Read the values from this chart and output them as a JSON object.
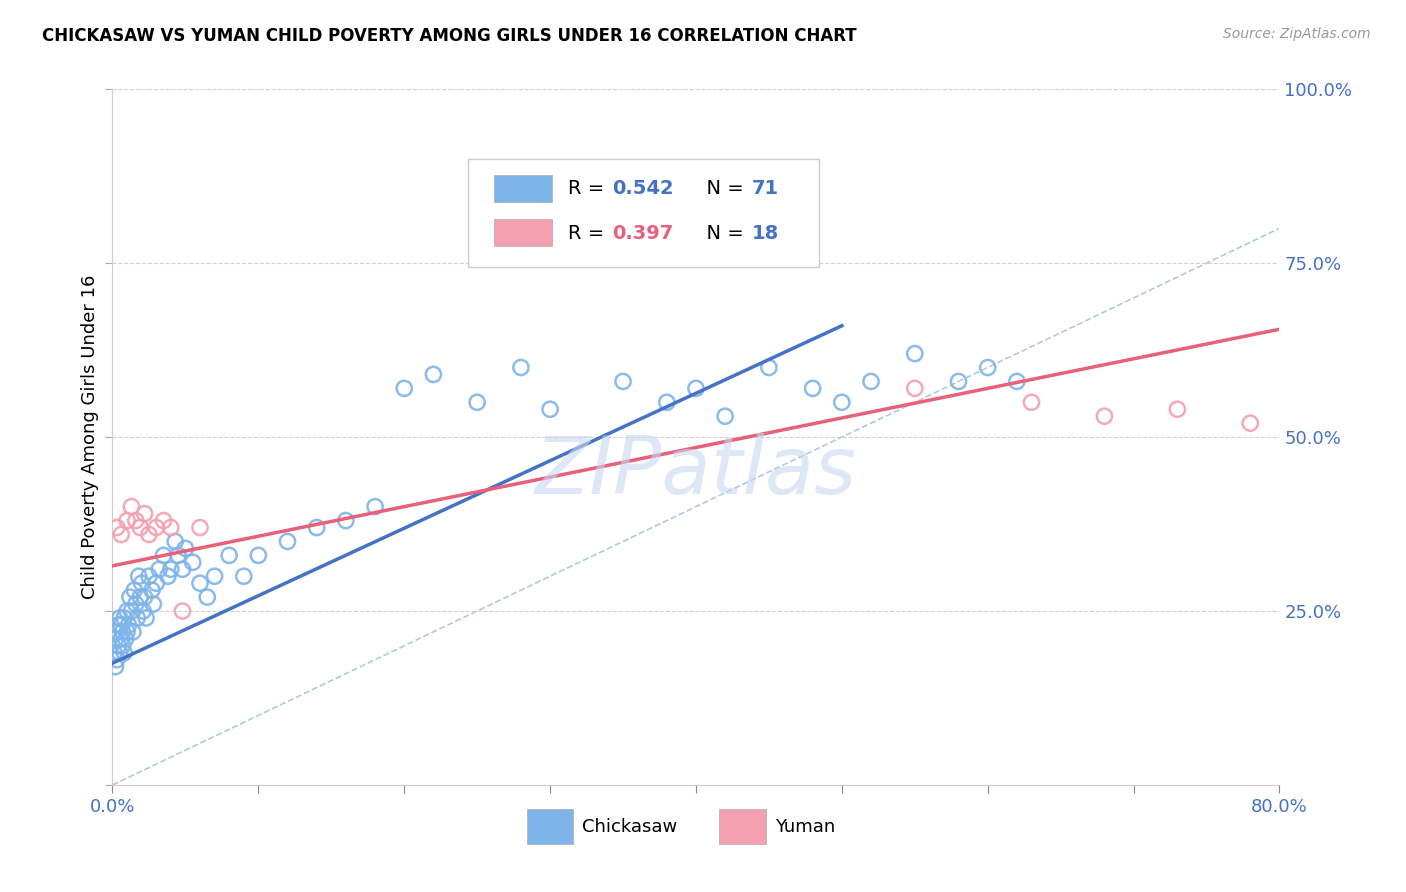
{
  "title": "CHICKASAW VS YUMAN CHILD POVERTY AMONG GIRLS UNDER 16 CORRELATION CHART",
  "source": "Source: ZipAtlas.com",
  "ylabel": "Child Poverty Among Girls Under 16",
  "xlim": [
    0,
    0.8
  ],
  "ylim": [
    0,
    1.0
  ],
  "chickasaw_color": "#7EB4EA",
  "yuman_color": "#F4A0B0",
  "chickasaw_R": 0.542,
  "chickasaw_N": 71,
  "yuman_R": 0.397,
  "yuman_N": 18,
  "blue_line_color": "#4472C4",
  "pink_line_color": "#E8607A",
  "ref_line_color": "#A8C4E0",
  "watermark": "ZIPatlas",
  "watermark_color": "#C8D8F0",
  "blue_line_x": [
    0.0,
    0.5
  ],
  "blue_line_y": [
    0.175,
    0.66
  ],
  "pink_line_x": [
    0.0,
    0.8
  ],
  "pink_line_y": [
    0.315,
    0.655
  ],
  "chickasaw_x": [
    0.001,
    0.002,
    0.002,
    0.003,
    0.003,
    0.004,
    0.004,
    0.005,
    0.005,
    0.006,
    0.006,
    0.007,
    0.007,
    0.008,
    0.008,
    0.009,
    0.01,
    0.01,
    0.011,
    0.012,
    0.013,
    0.014,
    0.015,
    0.016,
    0.017,
    0.018,
    0.019,
    0.02,
    0.021,
    0.022,
    0.023,
    0.025,
    0.027,
    0.028,
    0.03,
    0.032,
    0.035,
    0.038,
    0.04,
    0.043,
    0.045,
    0.048,
    0.05,
    0.055,
    0.06,
    0.065,
    0.07,
    0.08,
    0.09,
    0.1,
    0.12,
    0.14,
    0.16,
    0.18,
    0.2,
    0.22,
    0.25,
    0.28,
    0.3,
    0.35,
    0.38,
    0.4,
    0.42,
    0.45,
    0.48,
    0.5,
    0.52,
    0.55,
    0.58,
    0.6,
    0.62
  ],
  "chickasaw_y": [
    0.19,
    0.21,
    0.17,
    0.22,
    0.18,
    0.2,
    0.23,
    0.19,
    0.24,
    0.21,
    0.23,
    0.2,
    0.22,
    0.24,
    0.19,
    0.21,
    0.25,
    0.22,
    0.23,
    0.27,
    0.25,
    0.22,
    0.28,
    0.26,
    0.24,
    0.3,
    0.27,
    0.29,
    0.25,
    0.27,
    0.24,
    0.3,
    0.28,
    0.26,
    0.29,
    0.31,
    0.33,
    0.3,
    0.31,
    0.35,
    0.33,
    0.31,
    0.34,
    0.32,
    0.29,
    0.27,
    0.3,
    0.33,
    0.3,
    0.33,
    0.35,
    0.37,
    0.38,
    0.4,
    0.57,
    0.59,
    0.55,
    0.6,
    0.54,
    0.58,
    0.55,
    0.57,
    0.53,
    0.6,
    0.57,
    0.55,
    0.58,
    0.62,
    0.58,
    0.6,
    0.58
  ],
  "yuman_x": [
    0.003,
    0.006,
    0.01,
    0.013,
    0.016,
    0.019,
    0.022,
    0.025,
    0.03,
    0.035,
    0.04,
    0.048,
    0.06,
    0.55,
    0.63,
    0.68,
    0.73,
    0.78
  ],
  "yuman_y": [
    0.37,
    0.36,
    0.38,
    0.4,
    0.38,
    0.37,
    0.39,
    0.36,
    0.37,
    0.38,
    0.37,
    0.25,
    0.37,
    0.57,
    0.55,
    0.53,
    0.54,
    0.52
  ]
}
